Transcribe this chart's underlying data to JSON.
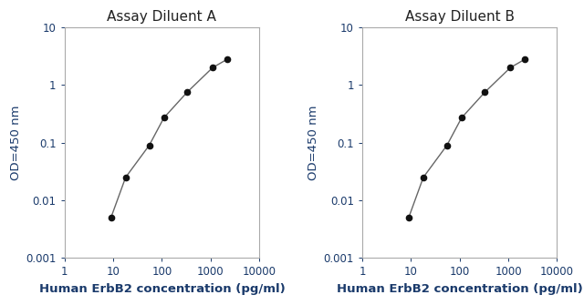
{
  "subplot_A": {
    "title": "Assay Diluent A",
    "x": [
      9,
      18,
      55,
      110,
      330,
      1100,
      2200
    ],
    "y": [
      0.005,
      0.025,
      0.09,
      0.27,
      0.75,
      2.0,
      2.8
    ]
  },
  "subplot_B": {
    "title": "Assay Diluent B",
    "x": [
      9,
      18,
      55,
      110,
      330,
      1100,
      2200
    ],
    "y": [
      0.005,
      0.025,
      0.09,
      0.27,
      0.75,
      2.0,
      2.8
    ]
  },
  "xlabel": "Human ErbB2 concentration (pg/ml)",
  "ylabel": "OD=450 nm",
  "xlim": [
    1,
    10000
  ],
  "ylim": [
    0.001,
    10
  ],
  "line_color": "#666666",
  "marker_color": "#111111",
  "title_color": "#222222",
  "label_color": "#1a3a6b",
  "tick_color": "#1a3a6b",
  "spine_color": "#aaaaaa",
  "background_color": "#ffffff",
  "title_fontsize": 11,
  "label_fontsize": 9.5,
  "tick_fontsize": 8.5
}
